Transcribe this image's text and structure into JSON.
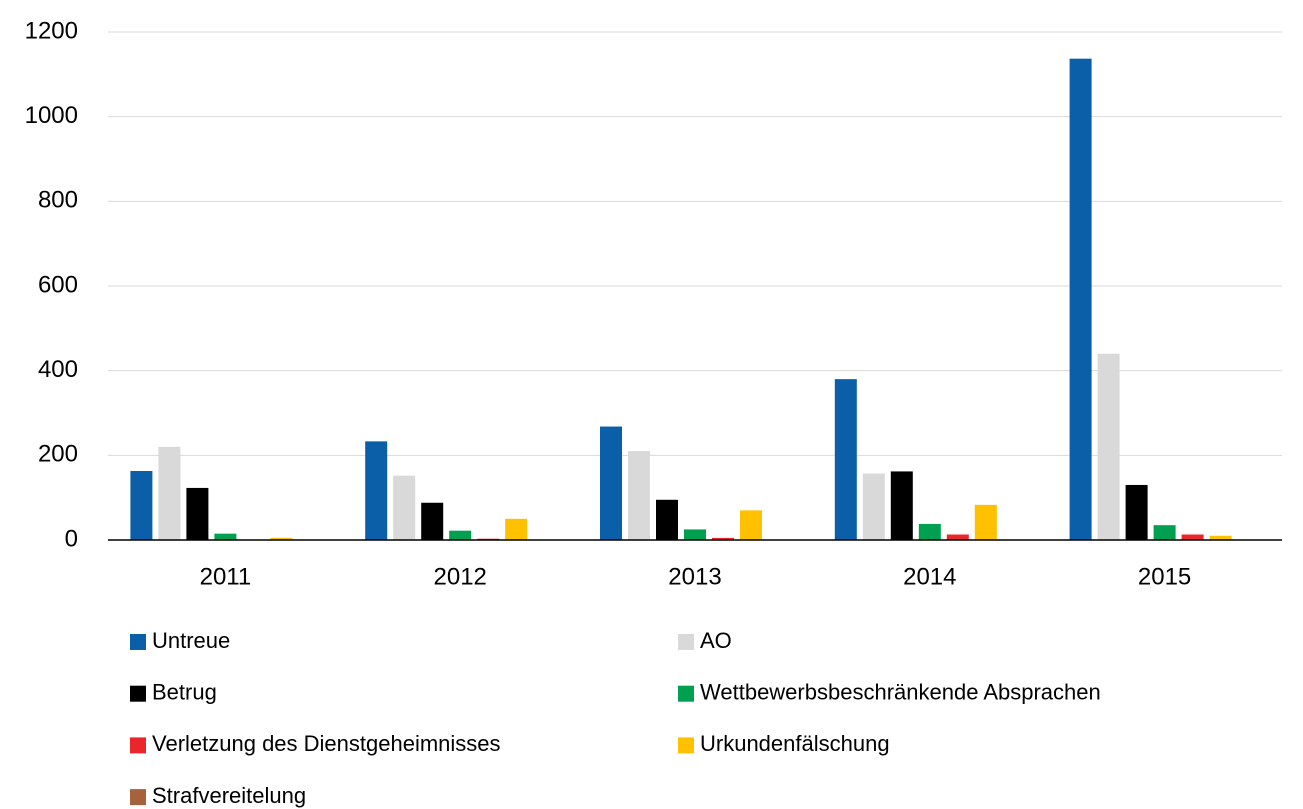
{
  "chart_data": {
    "type": "bar",
    "categories": [
      "2011",
      "2012",
      "2013",
      "2014",
      "2015"
    ],
    "series": [
      {
        "name": "Untreue",
        "color": "#0a5fa8",
        "values": [
          163,
          233,
          268,
          380,
          1137
        ]
      },
      {
        "name": "AO",
        "color": "#d9d9d9",
        "values": [
          220,
          152,
          210,
          157,
          440
        ]
      },
      {
        "name": "Betrug",
        "color": "#000000",
        "values": [
          123,
          88,
          95,
          162,
          130
        ]
      },
      {
        "name": "Wettbewerbsbeschränkende Absprachen",
        "color": "#00a050",
        "values": [
          15,
          22,
          25,
          38,
          35
        ]
      },
      {
        "name": "Verletzung des Dienstgeheimnisses",
        "color": "#e8262b",
        "values": [
          0,
          3,
          5,
          13,
          13
        ]
      },
      {
        "name": "Urkundenfälschung",
        "color": "#ffc000",
        "values": [
          5,
          50,
          70,
          83,
          10
        ]
      },
      {
        "name": "Strafvereitelung",
        "color": "#a5623c",
        "values": [
          0,
          0,
          0,
          0,
          0
        ]
      }
    ],
    "ylim": [
      0,
      1200
    ],
    "yticks": [
      0,
      200,
      400,
      600,
      800,
      1000,
      1200
    ],
    "grid": true
  }
}
